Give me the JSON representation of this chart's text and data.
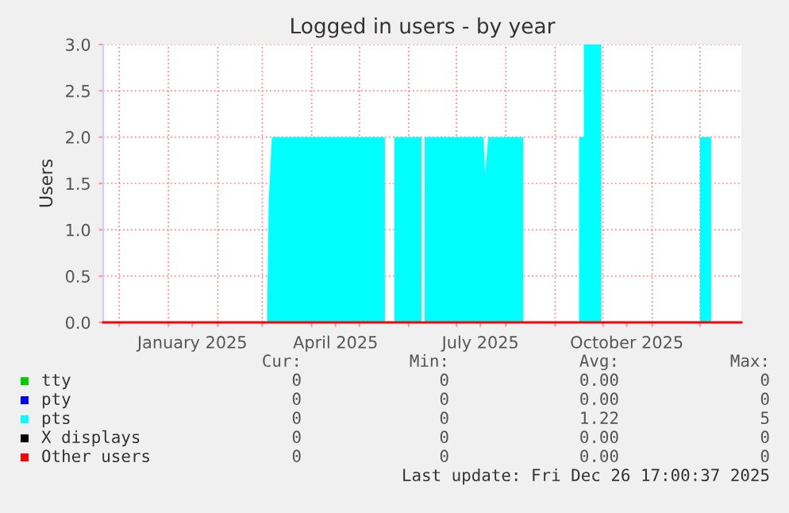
{
  "chart_data": {
    "type": "area",
    "title": "Logged in users - by year",
    "ylabel": "Users",
    "xlim": [
      "2024-11-21",
      "2025-12-27"
    ],
    "xticks": [
      {
        "value": "2024-12-01",
        "label": null
      },
      {
        "value": "2025-01-01",
        "label": null
      },
      {
        "value": "2025-01-16",
        "label": "January 2025"
      },
      {
        "value": "2025-02-01",
        "label": null
      },
      {
        "value": "2025-03-01",
        "label": null
      },
      {
        "value": "2025-04-01",
        "label": null
      },
      {
        "value": "2025-04-16",
        "label": "April 2025"
      },
      {
        "value": "2025-05-01",
        "label": null
      },
      {
        "value": "2025-06-01",
        "label": null
      },
      {
        "value": "2025-07-01",
        "label": null
      },
      {
        "value": "2025-07-16",
        "label": "July 2025"
      },
      {
        "value": "2025-08-01",
        "label": null
      },
      {
        "value": "2025-09-01",
        "label": null
      },
      {
        "value": "2025-10-01",
        "label": null
      },
      {
        "value": "2025-10-16",
        "label": "October 2025"
      },
      {
        "value": "2025-11-01",
        "label": null
      },
      {
        "value": "2025-12-01",
        "label": null
      }
    ],
    "ylim": [
      0,
      3
    ],
    "yticks": [
      {
        "value": 0,
        "label": "0.0"
      },
      {
        "value": 0.5,
        "label": "0.5"
      },
      {
        "value": 1,
        "label": "1.0"
      },
      {
        "value": 1.5,
        "label": "1.5"
      },
      {
        "value": 2,
        "label": "2.0"
      },
      {
        "value": 2.5,
        "label": "2.5"
      },
      {
        "value": 3,
        "label": "3.0"
      }
    ],
    "grid": true,
    "legend": "bottom",
    "series": [
      {
        "name": "tty",
        "color": "#00cc00",
        "type": "line"
      },
      {
        "name": "pty",
        "color": "#0000ff",
        "type": "line"
      },
      {
        "name": "pts",
        "color": "#00ffff",
        "x": [
          "2025-03-04",
          "2025-03-05",
          "2025-03-07",
          "2025-05-17",
          "2025-05-17",
          "2025-05-23",
          "2025-05-23",
          "2025-06-09",
          "2025-06-09",
          "2025-06-11",
          "2025-06-11",
          "2025-07-18",
          "2025-07-19",
          "2025-07-21",
          "2025-08-12",
          "2025-08-12",
          "2025-09-16",
          "2025-09-16",
          "2025-09-19",
          "2025-09-19",
          "2025-09-30",
          "2025-09-30",
          "2025-12-01",
          "2025-12-01",
          "2025-12-08",
          "2025-12-08"
        ],
        "values": [
          0,
          1.3,
          2,
          2,
          0,
          0,
          2,
          2,
          0,
          0,
          2,
          2,
          1.6,
          2,
          2,
          0,
          0,
          2,
          2,
          3,
          3,
          0,
          0,
          2,
          2,
          0
        ]
      },
      {
        "name": "X displays",
        "color": "#000000",
        "type": "line"
      },
      {
        "name": "Other users",
        "color": "#ff0000",
        "type": "line",
        "x": [
          "2024-11-21",
          "2025-12-27"
        ],
        "values": [
          0,
          0
        ]
      }
    ],
    "annotations": [
      "Cur:",
      "Min:",
      "Avg:",
      "Max:",
      "0",
      "0",
      "0.00",
      "0",
      "0",
      "0",
      "0.00",
      "0",
      "0",
      "0",
      "1.22",
      "5",
      "0",
      "0",
      "0.00",
      "0",
      "0",
      "0",
      "0.00",
      "0",
      "Last update: Fri Dec 26 17:00:37 2025"
    ]
  }
}
